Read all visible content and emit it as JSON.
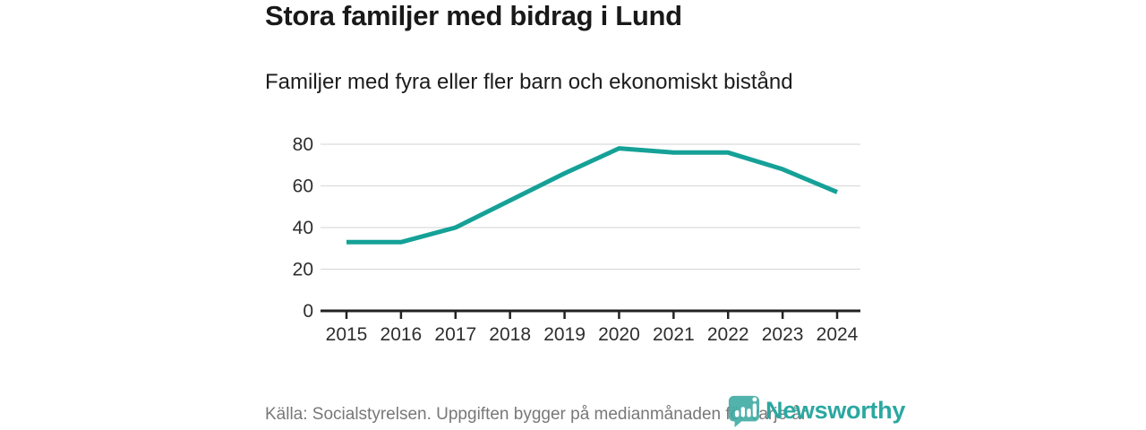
{
  "page": {
    "title": "Stora familjer med bidrag i Lund",
    "subtitle": "Familjer med fyra eller fler barn och ekonomiskt bistånd",
    "source_note": "Källa: Socialstyrelsen. Uppgiften bygger på medianmånaden för varje år",
    "brand": {
      "name": "Newsworthy",
      "icon": "chart-bubble-icon",
      "color": "#2aa8a0"
    }
  },
  "chart_data": {
    "type": "line",
    "title": "Stora familjer med bidrag i Lund",
    "subtitle": "Familjer med fyra eller fler barn och ekonomiskt bistånd",
    "x": [
      2015,
      2016,
      2017,
      2018,
      2019,
      2020,
      2021,
      2022,
      2023,
      2024
    ],
    "series": [
      {
        "name": "Familjer med fyra eller fler barn och ekonomiskt bistånd",
        "values": [
          33,
          33,
          40,
          53,
          66,
          78,
          76,
          76,
          68,
          57
        ],
        "color": "#15a197"
      }
    ],
    "xlabel": "",
    "ylabel": "",
    "ylim": [
      0,
      80
    ],
    "yticks": [
      0,
      20,
      40,
      60,
      80
    ],
    "grid": true,
    "legend": false,
    "colors": {
      "axis": "#222222",
      "gridline": "#dcdcdc",
      "tick_label": "#2e2e2e"
    }
  }
}
